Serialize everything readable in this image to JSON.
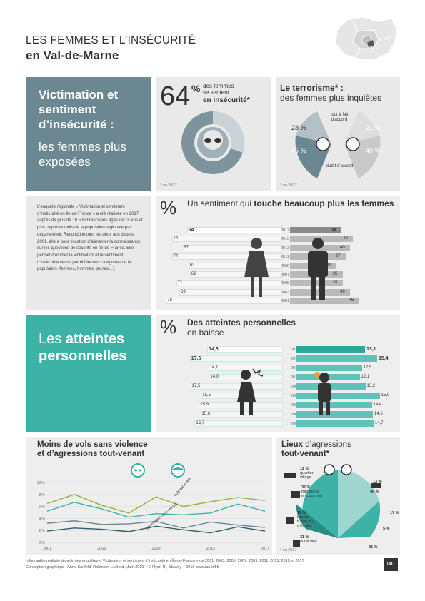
{
  "header": {
    "title_line1": "LES FEMMES ET L’INSÉCURITÉ",
    "title_line2": "en Val-de-Marne"
  },
  "section1": {
    "title_bold": "Victimation et sentiment d’insécurité :",
    "title_light": "les femmes plus exposées",
    "stat": {
      "value": "64",
      "unit": "%",
      "text1": "des femmes",
      "text2": "se sentent",
      "text3": "en insécurité*",
      "source": "* en 2017"
    },
    "terrorism": {
      "title_bold": "Le terrorisme* :",
      "title_light": "des femmes plus inquiètes",
      "label_top": "tout à fait d’accord",
      "label_bottom": "plutôt d’accord",
      "women_top": "23 %",
      "women_bottom": "45 %",
      "men_top": "21 %",
      "men_bottom": "40 %",
      "source": "* en 2017"
    }
  },
  "intro_text": "L’enquête régionale « Victimation et sentiment d’insécurité en Île-de-France » a été réalisée en 2017 auprès de plus de 10 500 Franciliens âgés de 15 ans et plus, représentatifs de la population régionale par département. Reconduite tous les deux ans depuis 2001, elle a pour vocation d’alimenter la connaissance sur les questions de sécurité en Île-de-France. Elle permet d’étudier la victimation et le sentiment d’insécurité vécus par différentes catégories de la population (femmes, hommes, jeunes…).",
  "sentiment": {
    "pct": "%",
    "title_light": "Un sentiment qui",
    "title_bold": "touche beaucoup plus les femmes",
    "years": [
      "2017",
      "2015",
      "2013",
      "2011",
      "2009",
      "2007",
      "2005",
      "2003",
      "2001"
    ],
    "women": [
      64,
      74,
      67,
      74,
      63,
      62,
      71,
      69,
      78
    ],
    "men": [
      34,
      42,
      40,
      37,
      31,
      35,
      35,
      40,
      46
    ]
  },
  "section2": {
    "title_light": "Les",
    "title_bold": "atteintes",
    "title_bold2": "personnelles"
  },
  "atteintes": {
    "pct": "%",
    "title_bold": "Des atteintes personnelles",
    "title_light": "en baisse",
    "years": [
      "2017",
      "2015",
      "2013",
      "2011",
      "2009",
      "2007",
      "2005",
      "2003",
      "2001"
    ],
    "women": [
      14.3,
      17.6,
      14.1,
      14.0,
      17.5,
      15.5,
      15.9,
      15.6,
      16.7
    ],
    "women_labels": [
      "14,3",
      "17,6",
      "14,1",
      "14,0",
      "17,5",
      "15,5",
      "15,9",
      "15,6",
      "16,7"
    ],
    "men": [
      13.1,
      15.4,
      12.5,
      12.1,
      13.2,
      15.9,
      14.4,
      14.6,
      14.7
    ],
    "men_labels": [
      "13,1",
      "15,4",
      "12,5",
      "12,1",
      "13,2",
      "15,9",
      "14,4",
      "14,6",
      "14,7"
    ]
  },
  "vols": {
    "title_bold": "Moins de vols sans violence",
    "title_bold2": "et d’agressions tout-venant",
    "label_vols": "vols sans violence",
    "label_agr": "agressions tout-venant",
    "y_ticks": [
      "10 %",
      "8 %",
      "6 %",
      "4 %",
      "2 %",
      "0 %"
    ],
    "x_ticks": [
      "2001",
      "2005",
      "2009",
      "2013",
      "2017"
    ],
    "chart_data": {
      "type": "line",
      "x": [
        2001,
        2003,
        2005,
        2007,
        2009,
        2011,
        2013,
        2015,
        2017
      ],
      "series": [
        {
          "name": "femmes vols sans violence",
          "values": [
            6.5,
            8.0,
            6.2,
            4.9,
            7.6,
            6.0,
            6.8,
            7.5,
            7.0
          ]
        },
        {
          "name": "hommes vols sans violence",
          "values": [
            5.2,
            6.7,
            5.6,
            4.2,
            4.8,
            4.6,
            4.9,
            6.4,
            5.2
          ]
        },
        {
          "name": "femmes agressions tout-venant",
          "values": [
            3.2,
            3.6,
            3.0,
            3.1,
            3.5,
            2.4,
            3.4,
            2.9,
            2.5
          ]
        },
        {
          "name": "hommes agressions tout-venant",
          "values": [
            1.9,
            2.4,
            2.2,
            1.8,
            2.7,
            2.1,
            1.6,
            2.6,
            1.9
          ]
        }
      ],
      "ylim": [
        0,
        10
      ]
    }
  },
  "lieux": {
    "title_bold": "Lieux",
    "title_light": "d’agressions",
    "title_bold2": "tout-venant*",
    "labels": [
      {
        "pct": "12 %",
        "text": "quartier, village"
      },
      {
        "pct": "32 %",
        "text": "transports en commun"
      },
      {
        "pct": "12 %",
        "text": "lieu de travail ou d’études"
      },
      {
        "pct": "31 %",
        "text": "autre ville"
      },
      {
        "pct": "13 %",
        "text": ""
      },
      {
        "pct": "46 %",
        "text": ""
      },
      {
        "pct": "17 %",
        "text": ""
      },
      {
        "pct": "5 %",
        "text": ""
      },
      {
        "pct": "31 %",
        "text": ""
      }
    ],
    "source": "* en 2017"
  },
  "footer": {
    "line1": "Infographie réalisée à partir des enquêtes « Victimation et sentiment d’insécurité en Île-de-France » de 2001, 2003, 2005, 2007, 2009, 2011, 2013, 2015 et 2017",
    "line2": "Conception graphique : Anne Sanfeld, Robinson Leelerdi, Juin 2019 – © Ryan R., Stavely – 2019 www.iau-idf.fr",
    "logo": "IAU"
  },
  "colors": {
    "slate": "#6a8792",
    "teal": "#3db3a7",
    "grey": "#e9e9e9",
    "dark": "#333333"
  }
}
